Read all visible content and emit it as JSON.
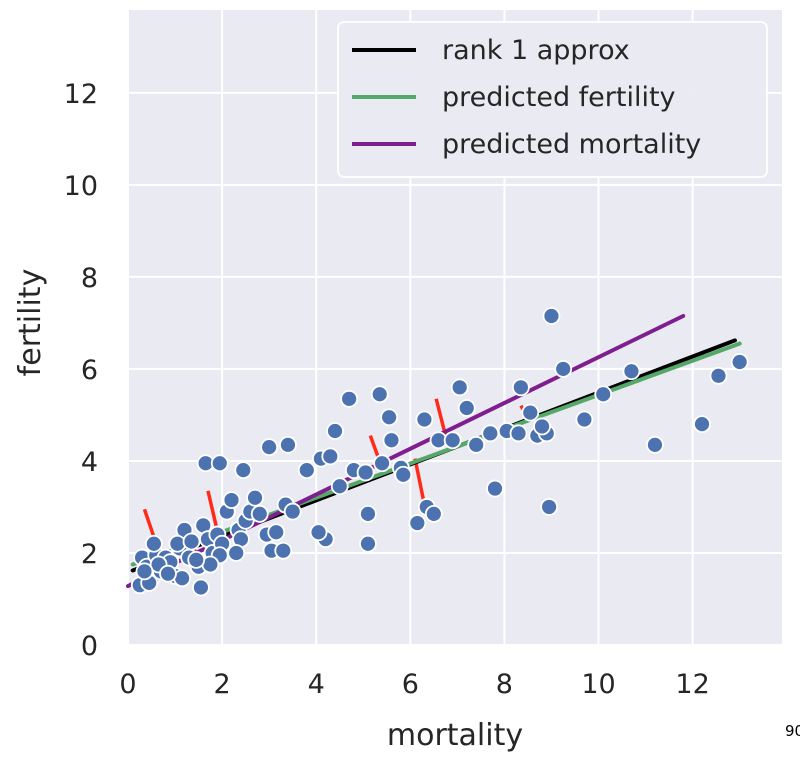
{
  "chart_data": {
    "type": "scatter",
    "title": "",
    "xlabel": "mortality",
    "ylabel": "fertility",
    "xlim": [
      0,
      13.9
    ],
    "ylim": [
      0,
      13.8
    ],
    "xticks": [
      0,
      2,
      4,
      6,
      8,
      10,
      12
    ],
    "yticks": [
      0,
      2,
      4,
      6,
      8,
      10,
      12
    ],
    "grid": true,
    "legend_position": "top-right",
    "colors": {
      "background": "#eaeaf2",
      "grid": "#ffffff",
      "points": "#4c72b0",
      "residual": "#ff2a1a",
      "rank1": "#000000",
      "pred_fertility": "#55a868",
      "pred_mortality": "#7f1f8f"
    },
    "series": [
      {
        "name": "rank 1 approx",
        "kind": "line",
        "x": [
          0.1,
          12.9
        ],
        "y": [
          1.62,
          6.62
        ]
      },
      {
        "name": "predicted fertility",
        "kind": "line",
        "x": [
          0.1,
          13.0
        ],
        "y": [
          1.75,
          6.55
        ]
      },
      {
        "name": "predicted mortality",
        "kind": "line",
        "x": [
          0.0,
          11.8
        ],
        "y": [
          1.28,
          7.15
        ]
      }
    ],
    "residuals": [
      {
        "x1": 0.35,
        "y1": 2.95,
        "x2": 0.75,
        "y2": 1.75
      },
      {
        "x1": 1.25,
        "y1": 2.6,
        "x2": 1.45,
        "y2": 1.95
      },
      {
        "x1": 1.7,
        "y1": 3.35,
        "x2": 1.95,
        "y2": 2.25
      },
      {
        "x1": 1.95,
        "y1": 2.55,
        "x2": 2.15,
        "y2": 2.3
      },
      {
        "x1": 2.7,
        "y1": 3.2,
        "x2": 2.9,
        "y2": 2.7
      },
      {
        "x1": 5.15,
        "y1": 4.55,
        "x2": 5.4,
        "y2": 3.85
      },
      {
        "x1": 6.1,
        "y1": 4.05,
        "x2": 6.3,
        "y2": 3.05
      },
      {
        "x1": 6.55,
        "y1": 5.35,
        "x2": 6.75,
        "y2": 4.55
      },
      {
        "x1": 8.35,
        "y1": 5.2,
        "x2": 8.5,
        "y2": 4.95
      }
    ],
    "points": [
      [
        0.3,
        1.9
      ],
      [
        0.4,
        1.7
      ],
      [
        0.5,
        1.45
      ],
      [
        0.6,
        1.95
      ],
      [
        0.7,
        1.6
      ],
      [
        0.8,
        1.9
      ],
      [
        0.9,
        1.8
      ],
      [
        1.0,
        1.5
      ],
      [
        1.1,
        2.1
      ],
      [
        1.15,
        1.45
      ],
      [
        1.2,
        2.5
      ],
      [
        1.3,
        1.9
      ],
      [
        1.5,
        1.7
      ],
      [
        1.55,
        1.25
      ],
      [
        1.6,
        2.6
      ],
      [
        1.7,
        2.3
      ],
      [
        1.8,
        2.0
      ],
      [
        1.9,
        2.4
      ],
      [
        2.0,
        2.2
      ],
      [
        2.1,
        2.9
      ],
      [
        2.2,
        3.15
      ],
      [
        2.35,
        2.5
      ],
      [
        2.4,
        2.3
      ],
      [
        2.5,
        2.7
      ],
      [
        2.6,
        2.9
      ],
      [
        2.7,
        3.2
      ],
      [
        2.8,
        2.85
      ],
      [
        2.95,
        2.4
      ],
      [
        3.05,
        2.05
      ],
      [
        3.15,
        2.45
      ],
      [
        3.3,
        2.05
      ],
      [
        3.35,
        3.05
      ],
      [
        3.5,
        2.9
      ],
      [
        1.95,
        1.95
      ],
      [
        1.75,
        1.75
      ],
      [
        2.3,
        2.0
      ],
      [
        1.65,
        3.95
      ],
      [
        1.95,
        3.95
      ],
      [
        2.45,
        3.8
      ],
      [
        3.0,
        4.3
      ],
      [
        3.4,
        4.35
      ],
      [
        3.8,
        3.8
      ],
      [
        4.1,
        4.05
      ],
      [
        4.3,
        4.1
      ],
      [
        4.4,
        4.65
      ],
      [
        4.7,
        5.35
      ],
      [
        4.2,
        2.3
      ],
      [
        4.05,
        2.45
      ],
      [
        4.5,
        3.45
      ],
      [
        4.8,
        3.8
      ],
      [
        5.05,
        3.75
      ],
      [
        5.1,
        2.85
      ],
      [
        5.1,
        2.2
      ],
      [
        5.35,
        5.45
      ],
      [
        5.55,
        4.95
      ],
      [
        5.6,
        4.45
      ],
      [
        5.4,
        3.95
      ],
      [
        5.8,
        3.85
      ],
      [
        5.85,
        3.7
      ],
      [
        6.15,
        2.65
      ],
      [
        6.3,
        4.9
      ],
      [
        6.35,
        3.0
      ],
      [
        6.5,
        2.85
      ],
      [
        6.6,
        4.45
      ],
      [
        6.9,
        4.45
      ],
      [
        7.05,
        5.6
      ],
      [
        7.2,
        5.15
      ],
      [
        7.4,
        4.35
      ],
      [
        7.7,
        4.6
      ],
      [
        7.8,
        3.4
      ],
      [
        8.05,
        4.65
      ],
      [
        8.3,
        4.6
      ],
      [
        8.35,
        5.6
      ],
      [
        8.55,
        5.05
      ],
      [
        8.7,
        4.55
      ],
      [
        8.9,
        4.6
      ],
      [
        8.8,
        4.75
      ],
      [
        8.95,
        3.0
      ],
      [
        9.0,
        7.15
      ],
      [
        9.25,
        6.0
      ],
      [
        9.7,
        4.9
      ],
      [
        10.1,
        5.45
      ],
      [
        10.7,
        5.95
      ],
      [
        11.2,
        4.35
      ],
      [
        12.2,
        4.8
      ],
      [
        12.55,
        5.85
      ],
      [
        13.0,
        6.15
      ],
      [
        0.25,
        1.3
      ],
      [
        0.45,
        1.35
      ],
      [
        0.65,
        1.75
      ],
      [
        0.85,
        1.55
      ],
      [
        1.05,
        2.2
      ],
      [
        1.35,
        2.25
      ],
      [
        1.45,
        1.85
      ],
      [
        0.55,
        2.2
      ],
      [
        0.35,
        1.6
      ]
    ]
  },
  "legend": {
    "items": [
      {
        "label": "rank 1 approx",
        "color": "#000000"
      },
      {
        "label": "predicted fertility",
        "color": "#55a868"
      },
      {
        "label": "predicted mortality",
        "color": "#7f1f8f"
      }
    ]
  },
  "corner_text": "90"
}
